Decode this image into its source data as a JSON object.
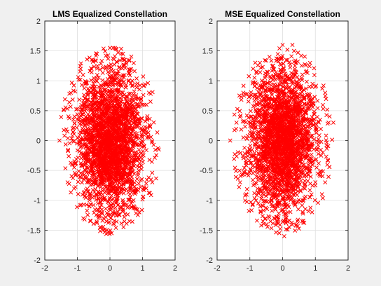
{
  "figure": {
    "background": "#f0f0f0"
  },
  "chart_data": [
    {
      "type": "scatter",
      "title": "LMS Equalized Constellation",
      "xlabel": "",
      "ylabel": "",
      "xlim": [
        -2,
        2
      ],
      "ylim": [
        -2,
        2
      ],
      "xticks": [
        -2,
        -1,
        0,
        1,
        2
      ],
      "yticks": [
        -2,
        -1.5,
        -1,
        -0.5,
        0,
        0.5,
        1,
        1.5,
        2
      ],
      "xtick_labels": [
        "-2",
        "-1",
        "0",
        "1",
        "2"
      ],
      "ytick_labels": [
        "-2",
        "-1.5",
        "-1",
        "-0.5",
        "0",
        "0.5",
        "1",
        "1.5",
        "2"
      ],
      "grid": true,
      "marker": "x",
      "color": "#ff0000",
      "series": [
        {
          "distribution": "dense elliptical cloud of points centered at origin",
          "x_range": [
            -1.6,
            1.6
          ],
          "y_range": [
            -1.6,
            1.6
          ],
          "x": [
            0.0,
            -1.55,
            1.5,
            0.0,
            0.05,
            -0.4,
            0.4,
            -1.2,
            1.2,
            -1.3,
            1.3,
            -0.9,
            0.9,
            -0.6,
            0.6,
            0.1,
            -0.1
          ],
          "y": [
            0.0,
            0.0,
            -0.15,
            1.55,
            -1.55,
            1.45,
            1.45,
            0.8,
            0.8,
            -0.7,
            -0.7,
            1.2,
            -1.2,
            -1.35,
            -1.35,
            1.55,
            -1.5
          ]
        }
      ]
    },
    {
      "type": "scatter",
      "title": "MSE Equalized Constellation",
      "xlabel": "",
      "ylabel": "",
      "xlim": [
        -2,
        2
      ],
      "ylim": [
        -2,
        2
      ],
      "xticks": [
        -2,
        -1,
        0,
        1,
        2
      ],
      "yticks": [
        -2,
        -1.5,
        -1,
        -0.5,
        0,
        0.5,
        1,
        1.5,
        2
      ],
      "xtick_labels": [
        "-2",
        "-1",
        "0",
        "1",
        "2"
      ],
      "ytick_labels": [
        "-2",
        "-1.5",
        "-1",
        "-0.5",
        "0",
        "0.5",
        "1",
        "1.5",
        "2"
      ],
      "grid": true,
      "marker": "x",
      "color": "#ff0000",
      "series": [
        {
          "distribution": "dense elliptical cloud of points centered at origin",
          "x_range": [
            -1.6,
            1.6
          ],
          "y_range": [
            -1.6,
            1.6
          ],
          "x": [
            0.0,
            -1.6,
            1.55,
            0.0,
            0.05,
            -0.4,
            0.35,
            -1.2,
            1.3,
            -1.3,
            1.3,
            -0.9,
            0.9,
            -0.6,
            0.6,
            0.3,
            -0.1
          ],
          "y": [
            0.0,
            0.0,
            0.3,
            1.6,
            -1.6,
            1.4,
            1.5,
            0.8,
            0.8,
            -0.7,
            -0.7,
            1.2,
            -1.2,
            -1.35,
            -1.35,
            1.6,
            -1.55
          ]
        }
      ]
    }
  ]
}
